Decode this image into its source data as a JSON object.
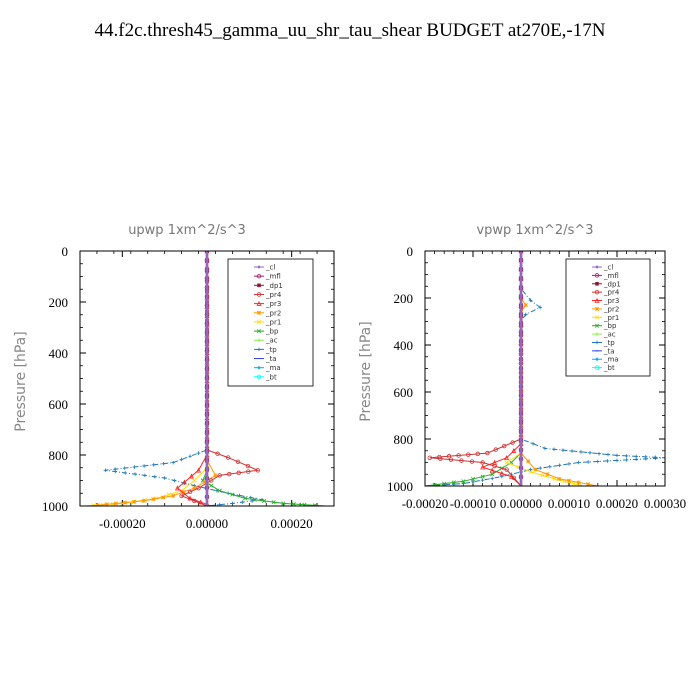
{
  "page_title": "44.f2c.thresh45_gamma_uu_shr_tau_shear  BUDGET at270E,-17N",
  "chart_data": [
    {
      "type": "line",
      "title": "upwp   1xm^2/s^3",
      "xlabel": "",
      "ylabel": "Pressure [hPa]",
      "xlim": [
        -0.0003,
        0.0003
      ],
      "ylim": [
        1000,
        0
      ],
      "x_ticks": [
        -0.0002,
        0.0,
        0.0002
      ],
      "x_tick_labels": [
        "-0.00020",
        "0.00000",
        "0.00020"
      ],
      "y_ticks": [
        0,
        200,
        400,
        600,
        800,
        1000
      ],
      "y_tick_labels": [
        "0",
        "200",
        "400",
        "600",
        "800",
        "1000"
      ],
      "legend_position": "top-right",
      "series": [
        {
          "name": "_cl",
          "color": "#9467bd",
          "points": [
            [
              0,
              0
            ],
            [
              0,
              1000
            ]
          ]
        },
        {
          "name": "_mfl",
          "color": "#a0207a",
          "points": [
            [
              0,
              0
            ],
            [
              0,
              1000
            ]
          ]
        },
        {
          "name": "_dp1",
          "color": "#8b1a3a",
          "points": [
            [
              0,
              0
            ],
            [
              0,
              200
            ],
            [
              0,
              600
            ],
            [
              0,
              1000
            ]
          ]
        },
        {
          "name": "_pr4",
          "color": "#cc3333",
          "points": [
            [
              0,
              0
            ],
            [
              0,
              780
            ],
            [
              5e-05,
              810
            ],
            [
              0.00012,
              860
            ],
            [
              3e-05,
              880
            ],
            [
              1e-05,
              900
            ],
            [
              -2e-05,
              930
            ],
            [
              -6e-05,
              960
            ],
            [
              -3e-05,
              980
            ],
            [
              0,
              1000
            ]
          ]
        },
        {
          "name": "_pr3",
          "color": "#ff2222",
          "points": [
            [
              0,
              0
            ],
            [
              0,
              800
            ],
            [
              -2e-05,
              860
            ],
            [
              -7e-05,
              930
            ],
            [
              -4e-05,
              970
            ],
            [
              1e-05,
              1000
            ]
          ]
        },
        {
          "name": "_pr2",
          "color": "#ff9900",
          "points": [
            [
              0,
              0
            ],
            [
              0,
              820
            ],
            [
              2e-05,
              880
            ],
            [
              -3e-05,
              930
            ],
            [
              -8e-05,
              960
            ],
            [
              -0.00015,
              980
            ],
            [
              -0.00028,
              1000
            ]
          ]
        },
        {
          "name": "_pr1",
          "color": "#ffdd00",
          "points": [
            [
              0,
              0
            ],
            [
              0,
              850
            ],
            [
              -3e-05,
              900
            ],
            [
              -6e-05,
              940
            ],
            [
              -0.00012,
              970
            ],
            [
              -0.0002,
              990
            ],
            [
              -0.00029,
              1000
            ]
          ]
        },
        {
          "name": "_bp",
          "color": "#22aa22",
          "points": [
            [
              0,
              0
            ],
            [
              0,
              860
            ],
            [
              -1e-05,
              900
            ],
            [
              3e-05,
              940
            ],
            [
              9e-05,
              970
            ],
            [
              0.00018,
              990
            ],
            [
              0.00028,
              1000
            ]
          ]
        },
        {
          "name": "_ac",
          "color": "#88ee44",
          "points": [
            [
              0,
              0
            ],
            [
              0,
              1000
            ]
          ]
        },
        {
          "name": "_tp",
          "color": "#1f77b4",
          "points": [
            [
              0,
              0
            ],
            [
              0,
              780
            ],
            [
              -8e-05,
              830
            ],
            [
              -0.00024,
              860
            ],
            [
              -0.0001,
              890
            ],
            [
              -3e-05,
              920
            ],
            [
              5e-05,
              950
            ],
            [
              0.00013,
              975
            ],
            [
              6e-05,
              990
            ],
            [
              0,
              1000
            ]
          ]
        },
        {
          "name": "_ta",
          "color": "#3344dd",
          "points": [
            [
              0,
              0
            ],
            [
              0,
              1000
            ]
          ]
        },
        {
          "name": "_ma",
          "color": "#00aaff",
          "points": [
            [
              0,
              0
            ],
            [
              0,
              1000
            ]
          ]
        },
        {
          "name": "_bt",
          "color": "#00ffff",
          "points": [
            [
              0,
              0
            ],
            [
              0,
              1000
            ]
          ]
        }
      ]
    },
    {
      "type": "line",
      "title": "vpwp   1xm^2/s^3",
      "xlabel": "",
      "ylabel": "Pressure [hPa]",
      "xlim": [
        -0.0002,
        0.0003
      ],
      "ylim": [
        1000,
        0
      ],
      "x_ticks": [
        -0.0002,
        -0.0001,
        0.0,
        0.0001,
        0.0002,
        0.0003
      ],
      "x_tick_labels": [
        "-0.00020",
        "-0.00010",
        "0.00000",
        "0.00010",
        "0.00020",
        "0.00030"
      ],
      "y_ticks": [
        0,
        200,
        400,
        600,
        800,
        1000
      ],
      "y_tick_labels": [
        "0",
        "200",
        "400",
        "600",
        "800",
        "1000"
      ],
      "legend_position": "top-right",
      "series": [
        {
          "name": "_cl",
          "color": "#9467bd",
          "points": [
            [
              0,
              0
            ],
            [
              0,
              1000
            ]
          ]
        },
        {
          "name": "_mfl",
          "color": "#a0207a",
          "points": [
            [
              0,
              0
            ],
            [
              0,
              1000
            ]
          ]
        },
        {
          "name": "_dp1",
          "color": "#8b1a3a",
          "points": [
            [
              0,
              0
            ],
            [
              0,
              1000
            ]
          ]
        },
        {
          "name": "_pr4",
          "color": "#cc3333",
          "points": [
            [
              0,
              0
            ],
            [
              0,
              800
            ],
            [
              -7e-05,
              860
            ],
            [
              -0.00019,
              880
            ],
            [
              -8e-05,
              900
            ],
            [
              -3e-05,
              930
            ],
            [
              0,
              1000
            ]
          ]
        },
        {
          "name": "_pr3",
          "color": "#ff2222",
          "points": [
            [
              0,
              0
            ],
            [
              0,
              820
            ],
            [
              -3e-05,
              880
            ],
            [
              -8e-05,
              920
            ],
            [
              -2e-05,
              960
            ],
            [
              0,
              1000
            ]
          ]
        },
        {
          "name": "_pr2",
          "color": "#ff9900",
          "points": [
            [
              0,
              0
            ],
            [
              0,
              200
            ],
            [
              1e-05,
              230
            ],
            [
              0,
              260
            ],
            [
              0,
              860
            ],
            [
              3e-05,
              930
            ],
            [
              8e-05,
              970
            ],
            [
              0.00016,
              1000
            ]
          ]
        },
        {
          "name": "_pr1",
          "color": "#ffdd00",
          "points": [
            [
              0,
              0
            ],
            [
              0,
              860
            ],
            [
              -3e-05,
              900
            ],
            [
              2e-05,
              940
            ],
            [
              7e-05,
              970
            ],
            [
              0.00013,
              1000
            ]
          ]
        },
        {
          "name": "_bp",
          "color": "#22aa22",
          "points": [
            [
              0,
              0
            ],
            [
              0,
              860
            ],
            [
              -2e-05,
              900
            ],
            [
              -6e-05,
              950
            ],
            [
              -0.00012,
              980
            ],
            [
              -0.0002,
              1000
            ]
          ]
        },
        {
          "name": "_ac",
          "color": "#88ee44",
          "points": [
            [
              0,
              0
            ],
            [
              0,
              1000
            ]
          ]
        },
        {
          "name": "_tp",
          "color": "#1f77b4",
          "points": [
            [
              0,
              0
            ],
            [
              0,
              160
            ],
            [
              2e-05,
              210
            ],
            [
              4e-05,
              240
            ],
            [
              1e-05,
              270
            ],
            [
              0,
              300
            ],
            [
              0,
              800
            ],
            [
              5e-05,
              840
            ],
            [
              0.0002,
              870
            ],
            [
              0.0003,
              880
            ],
            [
              0.00012,
              900
            ],
            [
              2e-05,
              930
            ],
            [
              -4e-05,
              960
            ],
            [
              -0.00012,
              990
            ],
            [
              -0.0002,
              1000
            ]
          ]
        },
        {
          "name": "_ta",
          "color": "#3344dd",
          "points": [
            [
              0,
              0
            ],
            [
              0,
              1000
            ]
          ]
        },
        {
          "name": "_ma",
          "color": "#00aaff",
          "points": [
            [
              0,
              0
            ],
            [
              0,
              1000
            ]
          ]
        },
        {
          "name": "_bt",
          "color": "#00ffff",
          "points": [
            [
              0,
              0
            ],
            [
              0,
              1000
            ]
          ]
        }
      ]
    }
  ]
}
